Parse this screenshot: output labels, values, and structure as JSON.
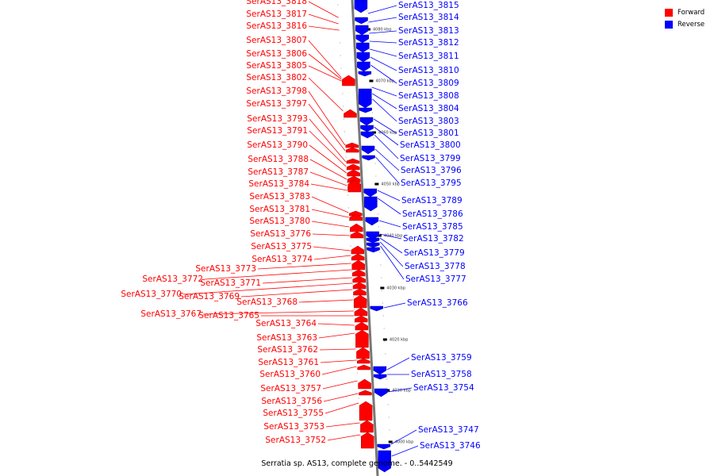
{
  "title": "Serratia sp. AS13, complete genome. - 0..5442549",
  "colors": {
    "forward": "#ff0000",
    "reverse": "#0000ff"
  },
  "legend": [
    {
      "label": "Forward",
      "color": "#ff0000",
      "strand": "forward"
    },
    {
      "label": "Reverse",
      "color": "#0000ff",
      "strand": "reverse"
    }
  ],
  "scale_ticks": [
    "4080 kbp",
    "4070 kbp",
    "4060 kbp",
    "4050 kbp",
    "4040 kbp",
    "4030 kbp",
    "4020 kbp",
    "4010 kbp",
    "4000 kbp"
  ],
  "forward_genes": [
    "SerAS13_3818",
    "SerAS13_3817",
    "SerAS13_3816",
    "SerAS13_3807",
    "SerAS13_3806",
    "SerAS13_3805",
    "SerAS13_3802",
    "SerAS13_3798",
    "SerAS13_3797",
    "SerAS13_3793",
    "SerAS13_3791",
    "SerAS13_3790",
    "SerAS13_3788",
    "SerAS13_3787",
    "SerAS13_3784",
    "SerAS13_3783",
    "SerAS13_3781",
    "SerAS13_3780",
    "SerAS13_3776",
    "SerAS13_3775",
    "SerAS13_3774",
    "SerAS13_3773",
    "SerAS13_3772",
    "SerAS13_3771",
    "SerAS13_3770",
    "SerAS13_3769",
    "SerAS13_3768",
    "SerAS13_3767",
    "SerAS13_3765",
    "SerAS13_3764",
    "SerAS13_3763",
    "SerAS13_3762",
    "SerAS13_3761",
    "SerAS13_3760",
    "SerAS13_3757",
    "SerAS13_3756",
    "SerAS13_3755",
    "SerAS13_3753",
    "SerAS13_3752"
  ],
  "reverse_genes": [
    "SerAS13_3815",
    "SerAS13_3814",
    "SerAS13_3813",
    "SerAS13_3812",
    "SerAS13_3811",
    "SerAS13_3810",
    "SerAS13_3809",
    "SerAS13_3808",
    "SerAS13_3804",
    "SerAS13_3803",
    "SerAS13_3801",
    "SerAS13_3800",
    "SerAS13_3799",
    "SerAS13_3796",
    "SerAS13_3795",
    "SerAS13_3789",
    "SerAS13_3786",
    "SerAS13_3785",
    "SerAS13_3782",
    "SerAS13_3779",
    "SerAS13_3778",
    "SerAS13_3777",
    "SerAS13_3766",
    "SerAS13_3759",
    "SerAS13_3758",
    "SerAS13_3754",
    "SerAS13_3747",
    "SerAS13_3746"
  ]
}
